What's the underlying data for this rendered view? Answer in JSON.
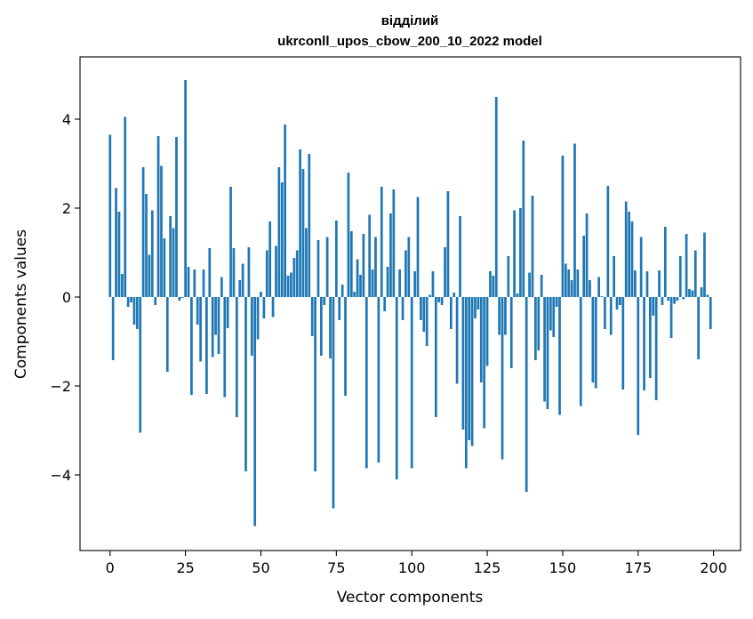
{
  "chart_data": {
    "type": "bar",
    "title_line1": "відділий",
    "title_line2": "ukrconll_upos_cbow_200_10_2022 model",
    "xlabel": "Vector components",
    "ylabel": "Components values",
    "xlim": [
      -9.95,
      208.95
    ],
    "ylim": [
      -5.7,
      5.4
    ],
    "xticks": [
      0,
      25,
      50,
      75,
      100,
      125,
      150,
      175,
      200
    ],
    "yticks": [
      -4,
      -2,
      0,
      2,
      4
    ],
    "ytick_labels": [
      "−4",
      "−2",
      "0",
      "2",
      "4"
    ],
    "bar_color": "#1f77b4",
    "grid": false,
    "x": [
      0,
      1,
      2,
      3,
      4,
      5,
      6,
      7,
      8,
      9,
      10,
      11,
      12,
      13,
      14,
      15,
      16,
      17,
      18,
      19,
      20,
      21,
      22,
      23,
      24,
      25,
      26,
      27,
      28,
      29,
      30,
      31,
      32,
      33,
      34,
      35,
      36,
      37,
      38,
      39,
      40,
      41,
      42,
      43,
      44,
      45,
      46,
      47,
      48,
      49,
      50,
      51,
      52,
      53,
      54,
      55,
      56,
      57,
      58,
      59,
      60,
      61,
      62,
      63,
      64,
      65,
      66,
      67,
      68,
      69,
      70,
      71,
      72,
      73,
      74,
      75,
      76,
      77,
      78,
      79,
      80,
      81,
      82,
      83,
      84,
      85,
      86,
      87,
      88,
      89,
      90,
      91,
      92,
      93,
      94,
      95,
      96,
      97,
      98,
      99,
      100,
      101,
      102,
      103,
      104,
      105,
      106,
      107,
      108,
      109,
      110,
      111,
      112,
      113,
      114,
      115,
      116,
      117,
      118,
      119,
      120,
      121,
      122,
      123,
      124,
      125,
      126,
      127,
      128,
      129,
      130,
      131,
      132,
      133,
      134,
      135,
      136,
      137,
      138,
      139,
      140,
      141,
      142,
      143,
      144,
      145,
      146,
      147,
      148,
      149,
      150,
      151,
      152,
      153,
      154,
      155,
      156,
      157,
      158,
      159,
      160,
      161,
      162,
      163,
      164,
      165,
      166,
      167,
      168,
      169,
      170,
      171,
      172,
      173,
      174,
      175,
      176,
      177,
      178,
      179,
      180,
      181,
      182,
      183,
      184,
      185,
      186,
      187,
      188,
      189,
      190,
      191,
      192,
      193,
      194,
      195,
      196,
      197,
      198,
      199
    ],
    "values": [
      3.65,
      -1.42,
      2.45,
      1.92,
      0.52,
      4.05,
      -0.22,
      -0.12,
      -0.62,
      -0.72,
      -3.05,
      2.92,
      2.32,
      0.95,
      1.95,
      -0.18,
      3.62,
      2.95,
      1.32,
      -1.68,
      1.82,
      1.55,
      3.6,
      -0.08,
      -0.02,
      4.88,
      0.68,
      -2.2,
      0.62,
      -0.62,
      -1.45,
      0.62,
      -2.18,
      1.1,
      -1.35,
      -0.85,
      -1.28,
      0.45,
      -2.25,
      -0.7,
      2.48,
      1.1,
      -2.7,
      0.38,
      0.75,
      -3.92,
      1.12,
      -1.32,
      -5.15,
      -0.95,
      0.12,
      -0.48,
      1.05,
      1.7,
      -0.45,
      1.15,
      2.92,
      2.58,
      3.88,
      0.48,
      0.55,
      0.88,
      1.05,
      3.32,
      2.88,
      1.55,
      3.22,
      -0.88,
      -3.92,
      1.28,
      -1.32,
      -0.18,
      1.35,
      -1.38,
      -4.75,
      1.72,
      -0.52,
      0.28,
      -2.22,
      2.8,
      1.48,
      0.12,
      0.85,
      0.5,
      1.42,
      -3.85,
      1.85,
      0.62,
      1.35,
      -3.72,
      2.48,
      -0.32,
      0.68,
      1.88,
      2.42,
      -4.1,
      0.62,
      -0.52,
      1.05,
      1.35,
      -3.85,
      0.58,
      2.25,
      -0.52,
      -0.78,
      -1.1,
      0.05,
      0.58,
      -2.7,
      -0.12,
      -0.18,
      1.12,
      2.38,
      -0.72,
      0.1,
      -1.95,
      1.82,
      -2.98,
      -3.85,
      -3.22,
      -3.35,
      -0.48,
      -0.28,
      -1.92,
      -2.95,
      -1.55,
      0.58,
      0.48,
      4.5,
      -0.85,
      -3.65,
      -0.85,
      0.92,
      -1.6,
      1.95,
      0.08,
      2.0,
      3.52,
      -4.38,
      0.55,
      2.28,
      -1.42,
      -1.2,
      0.5,
      -2.35,
      -2.52,
      -0.75,
      -0.9,
      -0.22,
      -2.65,
      3.18,
      0.75,
      0.62,
      0.38,
      3.45,
      0.62,
      -2.45,
      1.38,
      1.88,
      0.38,
      -1.92,
      -2.05,
      0.45,
      0.02,
      -0.72,
      2.5,
      -0.85,
      0.92,
      -0.28,
      -0.18,
      -2.08,
      2.15,
      1.92,
      1.7,
      0.6,
      -3.1,
      1.35,
      -2.1,
      0.58,
      -1.82,
      -0.42,
      -2.32,
      0.6,
      -0.18,
      1.58,
      -0.08,
      -0.92,
      -0.15,
      -0.08,
      0.92,
      -0.05,
      1.42,
      0.18,
      0.15,
      1.05,
      -1.4,
      0.22,
      1.45,
      0.05,
      -0.72
    ]
  }
}
